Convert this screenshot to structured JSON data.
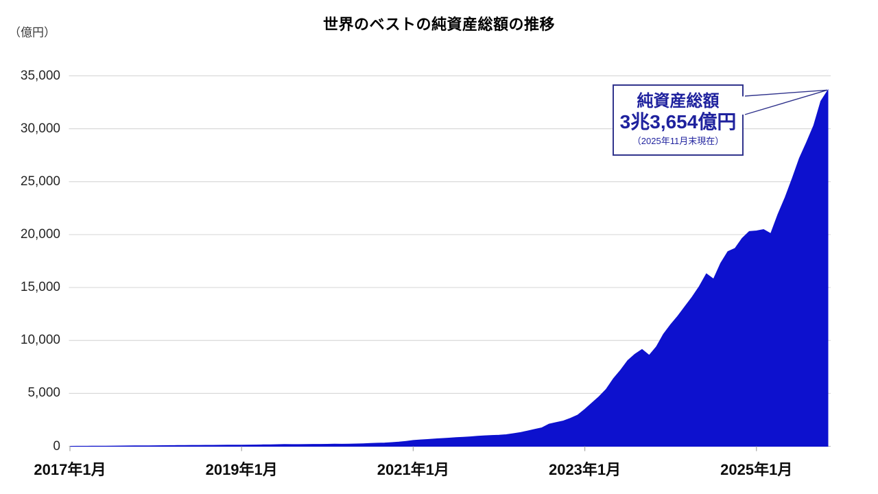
{
  "chart_data": {
    "type": "area",
    "title": "世界のベストの純資産総額の推移",
    "y_unit_label": "（億円）",
    "series_name": "純資産総額",
    "x_start_month": "2017-01",
    "x_end_month": "2025-11",
    "x_tick_labels": [
      "2017年1月",
      "2019年1月",
      "2021年1月",
      "2023年1月",
      "2025年1月"
    ],
    "x_tick_month_indices": [
      0,
      24,
      48,
      72,
      96
    ],
    "y_tick_labels": [
      "0",
      "5,000",
      "10,000",
      "15,000",
      "20,000",
      "25,000",
      "30,000",
      "35,000"
    ],
    "y_tick_values": [
      0,
      5000,
      10000,
      15000,
      20000,
      25000,
      30000,
      35000
    ],
    "ylim": [
      0,
      35000
    ],
    "grid": "horizontal",
    "legend": "none",
    "fill_color": "#0d11ce",
    "gridline_color": "#d9d9d9",
    "axis_line_color": "#bfbfbf",
    "values_monthly": [
      3,
      5,
      8,
      11,
      14,
      18,
      23,
      30,
      38,
      45,
      50,
      55,
      60,
      66,
      72,
      78,
      83,
      88,
      92,
      96,
      100,
      104,
      108,
      112,
      115,
      122,
      130,
      140,
      152,
      165,
      175,
      170,
      168,
      175,
      185,
      190,
      195,
      205,
      200,
      210,
      225,
      245,
      270,
      295,
      320,
      355,
      405,
      470,
      560,
      610,
      650,
      700,
      740,
      780,
      820,
      860,
      900,
      950,
      1000,
      1030,
      1050,
      1100,
      1200,
      1300,
      1450,
      1600,
      1750,
      2100,
      2250,
      2400,
      2650,
      2950,
      3500,
      4100,
      4700,
      5400,
      6400,
      7200,
      8100,
      8700,
      9150,
      8600,
      9400,
      10600,
      11500,
      12300,
      13200,
      14100,
      15100,
      16300,
      15800,
      17300,
      18400,
      18700,
      19650,
      20300,
      20350,
      20480,
      20100,
      21900,
      23500,
      25300,
      27200,
      28700,
      30300,
      32600,
      33654
    ]
  },
  "annotation": {
    "title": "純資産総額",
    "value_text": "3兆3,654億円",
    "as_of": "（2025年11月末現在）",
    "value": 33654,
    "text_color": "#1f229e",
    "border_color": "#30338c"
  }
}
